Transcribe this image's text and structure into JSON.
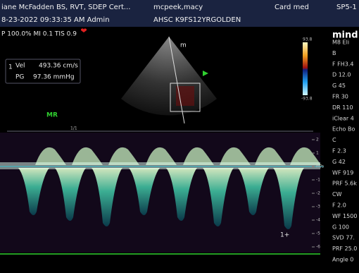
{
  "header": {
    "operator": "iane McFadden BS, RVT, SDEP Cert...",
    "patient": "mcpeek,macy",
    "exam": "Card med",
    "probe": "SP5-1",
    "datetime": "8-23-2022 09:33:35 AM Admin",
    "institution": "AHSC K9FS12YRGOLDEN"
  },
  "status": "P 100.0%  MI 0.1  TIS 0.9",
  "measurement": {
    "index": "1",
    "vel_label": "Vel",
    "vel_value": "493.36 cm/s",
    "pg_label": "PG",
    "pg_value": "97.36 mmHg"
  },
  "mode_label": "MR",
  "color_bar": {
    "max": "93.8",
    "min": "-93.8"
  },
  "sweep_label": "1/1",
  "cursor_label": "1+",
  "doppler_scale": [
    "2",
    "1",
    "m/s",
    "-1",
    "-2",
    "-3",
    "-4",
    "-5",
    "-6"
  ],
  "side_panel": [
    "mind",
    "M8 Eli",
    "B",
    "F FH3.4",
    "D 12.0",
    "G 45",
    "FR 30",
    "DR 110",
    "iClear 4",
    "Echo Bo",
    "C",
    "F 2.3",
    "G 42",
    "WF 919",
    "PRF 5.6k",
    "CW",
    "F 2.0",
    "WF 1500",
    "G 100",
    "SVD 77.",
    "PRF 25.0",
    "Angle 0"
  ]
}
